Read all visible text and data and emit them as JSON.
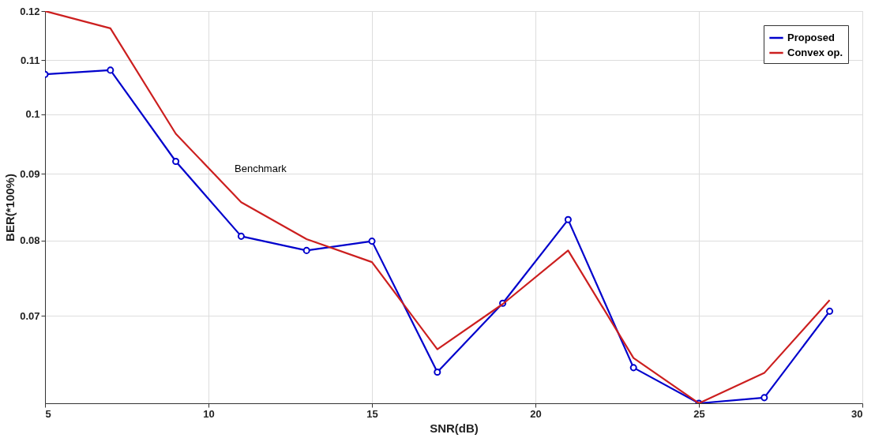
{
  "chart_data": {
    "type": "line",
    "xlabel": "SNR(dB)",
    "ylabel": "BER(*100%)",
    "x": [
      5,
      7,
      9,
      11,
      13,
      15,
      17,
      19,
      21,
      23,
      25,
      27,
      29
    ],
    "series": [
      {
        "name": "Proposed",
        "color": "#0000cc",
        "marker": "circle",
        "values": [
          0.1073,
          0.1081,
          0.092,
          0.0806,
          0.0786,
          0.0799,
          0.0634,
          0.0716,
          0.083,
          0.0639,
          0.06,
          0.0606,
          0.0706
        ]
      },
      {
        "name": "Convex op.",
        "color": "#cc1f1f",
        "marker": "none",
        "values": [
          0.12,
          0.1164,
          0.0966,
          0.0856,
          0.0802,
          0.077,
          0.066,
          0.0715,
          0.0786,
          0.065,
          0.06,
          0.0633,
          0.072
        ]
      }
    ],
    "xlim": [
      5,
      30
    ],
    "xticks": [
      5,
      10,
      15,
      20,
      25,
      30
    ],
    "ylim": [
      0.06,
      0.12
    ],
    "yticks": [
      0.07,
      0.08,
      0.09,
      0.1,
      0.11,
      0.12
    ],
    "log": "y",
    "grid": true,
    "legend": "top right",
    "line_style": "solid",
    "annotations": [
      "Benchmark"
    ]
  }
}
